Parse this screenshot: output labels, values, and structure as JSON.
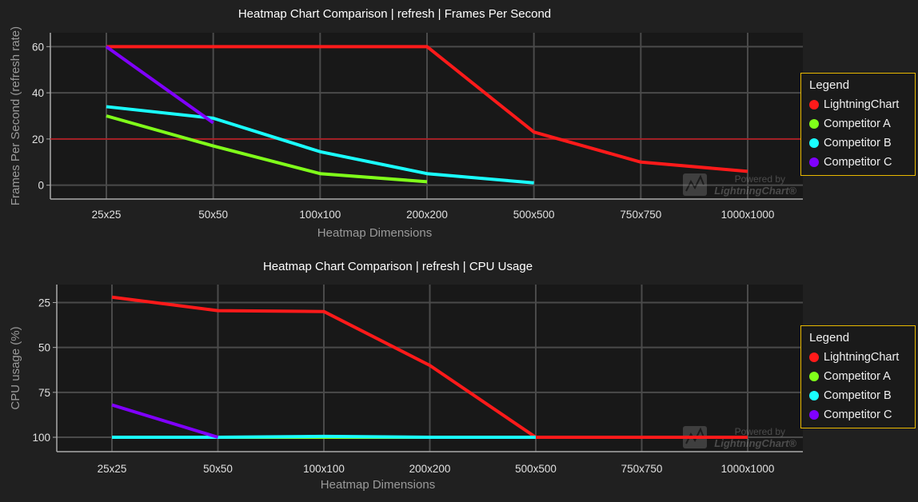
{
  "colors": {
    "background": "#202020",
    "plot_background": "#181818",
    "grid": "#4a4a4a",
    "axis_text": "#e0e0e0",
    "axis_title": "#9a9a9a",
    "threshold_line": "#c0161c",
    "legend_border": "#e8b800",
    "series": [
      "#ff1a1a",
      "#80ff1a",
      "#1affff",
      "#8000ff"
    ]
  },
  "watermark": {
    "line1": "Powered by",
    "line2": "LightningChart",
    "mark": "®"
  },
  "chart_data": [
    {
      "type": "line",
      "title": "Heatmap Chart Comparison | refresh | Frames Per Second",
      "xlabel": "Heatmap Dimensions",
      "ylabel": "Frames Per Second (refresh rate)",
      "categories": [
        "25x25",
        "50x50",
        "100x100",
        "200x200",
        "500x500",
        "750x750",
        "1000x1000"
      ],
      "yticks": [
        "0",
        "20",
        "40",
        "60"
      ],
      "ylim": [
        -6,
        66
      ],
      "y_inverted": false,
      "threshold": 20,
      "grid": true,
      "legend": {
        "title": "Legend",
        "position": "right",
        "items": [
          "LightningChart",
          "Competitor A",
          "Competitor B",
          "Competitor C"
        ]
      },
      "series": [
        {
          "name": "LightningChart",
          "values": [
            60,
            60,
            60,
            60,
            23,
            10,
            6
          ]
        },
        {
          "name": "Competitor A",
          "values": [
            30,
            17,
            5,
            1.5,
            null,
            null,
            null
          ]
        },
        {
          "name": "Competitor B",
          "values": [
            34,
            29,
            14.5,
            5,
            1,
            null,
            null
          ]
        },
        {
          "name": "Competitor C",
          "values": [
            60,
            27,
            null,
            null,
            null,
            null,
            null
          ]
        }
      ]
    },
    {
      "type": "line",
      "title": "Heatmap Chart Comparison | refresh | CPU Usage",
      "xlabel": "Heatmap Dimensions",
      "ylabel": "CPU usage (%)",
      "categories": [
        "25x25",
        "50x50",
        "100x100",
        "200x200",
        "500x500",
        "750x750",
        "1000x1000"
      ],
      "yticks": [
        "25",
        "50",
        "75",
        "100"
      ],
      "ylim": [
        15,
        108
      ],
      "y_inverted": true,
      "grid": true,
      "legend": {
        "title": "Legend",
        "position": "right",
        "items": [
          "LightningChart",
          "Competitor A",
          "Competitor B",
          "Competitor C"
        ]
      },
      "series": [
        {
          "name": "LightningChart",
          "values": [
            22,
            29.5,
            30,
            60,
            100,
            100,
            100
          ]
        },
        {
          "name": "Competitor A",
          "values": [
            100,
            100,
            100,
            100,
            100,
            null,
            null
          ]
        },
        {
          "name": "Competitor B",
          "values": [
            100,
            100,
            99.5,
            100,
            100,
            null,
            null
          ]
        },
        {
          "name": "Competitor C",
          "values": [
            82,
            100,
            null,
            null,
            null,
            null,
            null
          ]
        }
      ]
    }
  ]
}
